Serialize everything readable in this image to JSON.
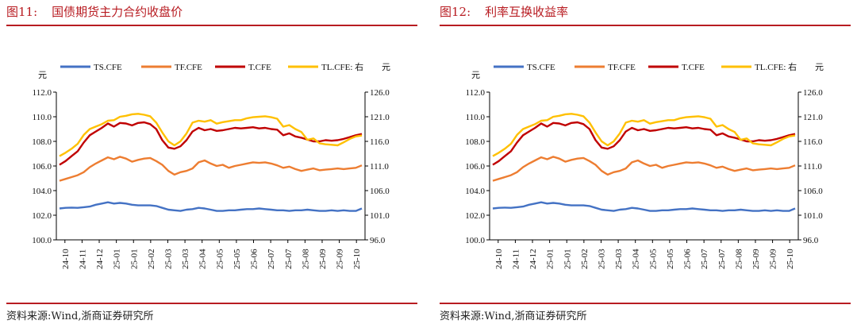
{
  "figures": [
    {
      "number": "图11:",
      "title": "国债期货主力合约收盘价",
      "source": "资料来源:Wind,浙商证券研究所"
    },
    {
      "number": "图12:",
      "title": "利率互换收益率",
      "source": "资料来源:Wind,浙商证券研究所"
    }
  ],
  "chart_data": [
    {
      "type": "line",
      "title": "",
      "left_unit": "元",
      "right_unit": "元",
      "ylim_left": [
        100.0,
        112.0
      ],
      "yticks_left": [
        "100.0",
        "102.0",
        "104.0",
        "106.0",
        "108.0",
        "110.0",
        "112.0"
      ],
      "ylim_right": [
        96.0,
        126.0
      ],
      "yticks_right": [
        "96.0",
        "101.0",
        "106.0",
        "111.0",
        "116.0",
        "121.0",
        "126.0"
      ],
      "x_ticks": [
        "24-10",
        "24-11",
        "24-12",
        "25-01",
        "25-01",
        "25-02",
        "25-03",
        "25-03",
        "25-04",
        "25-05",
        "25-05",
        "25-06",
        "25-07",
        "25-07",
        "25-08",
        "25-09",
        "25-09",
        "25-10"
      ],
      "legend_position": "top",
      "series": [
        {
          "name": "TS.CFE",
          "axis": "left",
          "color": "#4472c4",
          "values": [
            102.55,
            102.6,
            102.62,
            102.6,
            102.65,
            102.7,
            102.85,
            102.95,
            103.05,
            102.95,
            103.0,
            102.95,
            102.85,
            102.8,
            102.8,
            102.8,
            102.75,
            102.6,
            102.45,
            102.4,
            102.35,
            102.45,
            102.5,
            102.6,
            102.55,
            102.45,
            102.35,
            102.35,
            102.4,
            102.4,
            102.45,
            102.5,
            102.5,
            102.55,
            102.5,
            102.45,
            102.4,
            102.4,
            102.35,
            102.4,
            102.4,
            102.45,
            102.4,
            102.35,
            102.35,
            102.4,
            102.35,
            102.4,
            102.35,
            102.35,
            102.55
          ]
        },
        {
          "name": "TF.CFE",
          "axis": "left",
          "color": "#ed7d31",
          "values": [
            104.8,
            104.95,
            105.1,
            105.25,
            105.5,
            105.9,
            106.2,
            106.45,
            106.7,
            106.55,
            106.75,
            106.6,
            106.35,
            106.5,
            106.6,
            106.65,
            106.4,
            106.1,
            105.6,
            105.3,
            105.5,
            105.6,
            105.8,
            106.3,
            106.45,
            106.2,
            106.0,
            106.1,
            105.85,
            106.0,
            106.1,
            106.2,
            106.3,
            106.25,
            106.3,
            106.2,
            106.05,
            105.85,
            105.95,
            105.75,
            105.6,
            105.7,
            105.8,
            105.65,
            105.7,
            105.75,
            105.8,
            105.75,
            105.8,
            105.85,
            106.05
          ]
        },
        {
          "name": "T.CFE",
          "axis": "left",
          "color": "#c00000",
          "values": [
            106.1,
            106.4,
            106.8,
            107.2,
            107.9,
            108.5,
            108.8,
            109.1,
            109.45,
            109.2,
            109.5,
            109.45,
            109.3,
            109.5,
            109.55,
            109.4,
            109.0,
            108.1,
            107.5,
            107.4,
            107.6,
            108.1,
            108.8,
            109.1,
            108.9,
            109.0,
            108.85,
            108.9,
            109.0,
            109.1,
            109.05,
            109.1,
            109.15,
            109.05,
            109.1,
            109.0,
            108.95,
            108.5,
            108.65,
            108.4,
            108.3,
            108.15,
            108.0,
            108.0,
            108.1,
            108.05,
            108.1,
            108.2,
            108.35,
            108.5,
            108.6
          ]
        },
        {
          "name": "TL.CFE: 右",
          "axis": "right",
          "color": "#ffc000",
          "values": [
            113.0,
            113.7,
            114.5,
            115.5,
            117.3,
            118.5,
            119.0,
            119.5,
            120.2,
            120.3,
            121.0,
            121.2,
            121.5,
            121.6,
            121.4,
            121.1,
            119.8,
            117.8,
            116.0,
            115.2,
            116.0,
            117.6,
            119.8,
            120.2,
            120.0,
            120.3,
            119.6,
            119.9,
            120.1,
            120.3,
            120.3,
            120.7,
            120.9,
            121.0,
            121.1,
            120.9,
            120.6,
            119.0,
            119.3,
            118.5,
            117.9,
            116.3,
            116.6,
            115.6,
            115.4,
            115.3,
            115.2,
            115.8,
            116.5,
            117.0,
            117.2
          ]
        }
      ]
    },
    {
      "type": "line",
      "title": "",
      "left_unit": "元",
      "right_unit": "元",
      "ylim_left": [
        100.0,
        112.0
      ],
      "yticks_left": [
        "100.0",
        "102.0",
        "104.0",
        "106.0",
        "108.0",
        "110.0",
        "112.0"
      ],
      "ylim_right": [
        96.0,
        126.0
      ],
      "yticks_right": [
        "96.0",
        "101.0",
        "106.0",
        "111.0",
        "116.0",
        "121.0",
        "126.0"
      ],
      "x_ticks": [
        "24-10",
        "24-11",
        "24-12",
        "25-01",
        "25-01",
        "25-02",
        "25-03",
        "25-03",
        "25-04",
        "25-05",
        "25-05",
        "25-06",
        "25-07",
        "25-07",
        "25-08",
        "25-09",
        "25-09",
        "25-10"
      ],
      "legend_position": "top",
      "series": [
        {
          "name": "TS.CFE",
          "axis": "left",
          "color": "#4472c4",
          "values": [
            102.55,
            102.6,
            102.62,
            102.6,
            102.65,
            102.7,
            102.85,
            102.95,
            103.05,
            102.95,
            103.0,
            102.95,
            102.85,
            102.8,
            102.8,
            102.8,
            102.75,
            102.6,
            102.45,
            102.4,
            102.35,
            102.45,
            102.5,
            102.6,
            102.55,
            102.45,
            102.35,
            102.35,
            102.4,
            102.4,
            102.45,
            102.5,
            102.5,
            102.55,
            102.5,
            102.45,
            102.4,
            102.4,
            102.35,
            102.4,
            102.4,
            102.45,
            102.4,
            102.35,
            102.35,
            102.4,
            102.35,
            102.4,
            102.35,
            102.35,
            102.55
          ]
        },
        {
          "name": "TF.CFE",
          "axis": "left",
          "color": "#ed7d31",
          "values": [
            104.8,
            104.95,
            105.1,
            105.25,
            105.5,
            105.9,
            106.2,
            106.45,
            106.7,
            106.55,
            106.75,
            106.6,
            106.35,
            106.5,
            106.6,
            106.65,
            106.4,
            106.1,
            105.6,
            105.3,
            105.5,
            105.6,
            105.8,
            106.3,
            106.45,
            106.2,
            106.0,
            106.1,
            105.85,
            106.0,
            106.1,
            106.2,
            106.3,
            106.25,
            106.3,
            106.2,
            106.05,
            105.85,
            105.95,
            105.75,
            105.6,
            105.7,
            105.8,
            105.65,
            105.7,
            105.75,
            105.8,
            105.75,
            105.8,
            105.85,
            106.05
          ]
        },
        {
          "name": "T.CFE",
          "axis": "left",
          "color": "#c00000",
          "values": [
            106.1,
            106.4,
            106.8,
            107.2,
            107.9,
            108.5,
            108.8,
            109.1,
            109.45,
            109.2,
            109.5,
            109.45,
            109.3,
            109.5,
            109.55,
            109.4,
            109.0,
            108.1,
            107.5,
            107.4,
            107.6,
            108.1,
            108.8,
            109.1,
            108.9,
            109.0,
            108.85,
            108.9,
            109.0,
            109.1,
            109.05,
            109.1,
            109.15,
            109.05,
            109.1,
            109.0,
            108.95,
            108.5,
            108.65,
            108.4,
            108.3,
            108.15,
            108.0,
            108.0,
            108.1,
            108.05,
            108.1,
            108.2,
            108.35,
            108.5,
            108.6
          ]
        },
        {
          "name": "TL.CFE: 右",
          "axis": "right",
          "color": "#ffc000",
          "values": [
            113.0,
            113.7,
            114.5,
            115.5,
            117.3,
            118.5,
            119.0,
            119.5,
            120.2,
            120.3,
            121.0,
            121.2,
            121.5,
            121.6,
            121.4,
            121.1,
            119.8,
            117.8,
            116.0,
            115.2,
            116.0,
            117.6,
            119.8,
            120.2,
            120.0,
            120.3,
            119.6,
            119.9,
            120.1,
            120.3,
            120.3,
            120.7,
            120.9,
            121.0,
            121.1,
            120.9,
            120.6,
            119.0,
            119.3,
            118.5,
            117.9,
            116.3,
            116.6,
            115.6,
            115.4,
            115.3,
            115.2,
            115.8,
            116.5,
            117.0,
            117.2
          ]
        }
      ]
    }
  ]
}
